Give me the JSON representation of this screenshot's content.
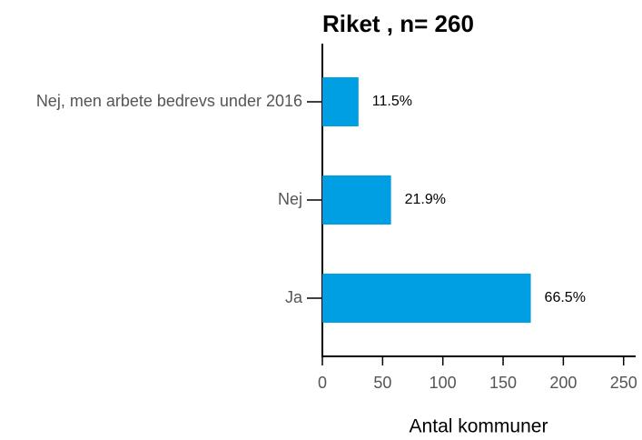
{
  "chart_data": {
    "type": "bar",
    "orientation": "horizontal",
    "title": "Riket , n= 260",
    "categories": [
      "Nej, men arbete bedrevs under 2016",
      "Nej",
      "Ja"
    ],
    "values": [
      30,
      57,
      173
    ],
    "annotations": [
      "11.5%",
      "21.9%",
      "66.5%"
    ],
    "color": "#009fe3",
    "xlabel": "Antal kommuner",
    "xlim": [
      0,
      260
    ],
    "xticks": [
      0,
      50,
      100,
      150,
      200,
      250
    ],
    "grid": false
  }
}
